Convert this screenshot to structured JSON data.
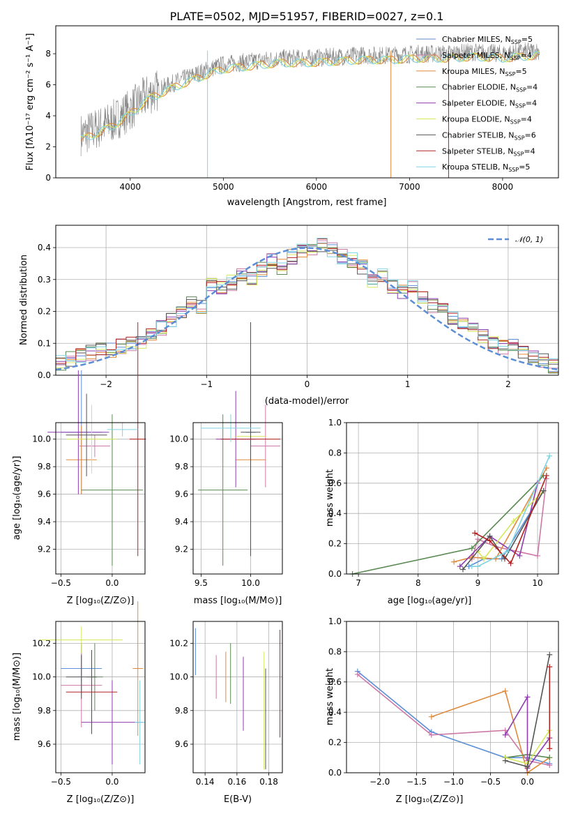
{
  "colors": [
    "#1f77b4",
    "#2ca02c",
    "#d62728",
    "#9467bd",
    "#8c564b",
    "#e377c2",
    "#7f7f7f",
    "#bcbd22",
    "#17becf"
  ],
  "spectrum": {
    "title": "PLATE=0502, MJD=51957, FIBERID=0027, z=0.1",
    "xlabel": "wavelength [Angstrom, rest frame]",
    "ylabel": "Flux [fλ10⁻¹⁷ erg cm⁻² s⁻¹ A⁻¹]",
    "xticks": [
      "4000",
      "5000",
      "6000",
      "7000",
      "8000"
    ],
    "yticks": [
      "0",
      "2",
      "4",
      "6",
      "8"
    ],
    "legend": [
      {
        "label": "Chabrier MILES, N_SSP=5",
        "color": "#5b8ed6"
      },
      {
        "label": "Salpeter MILES, N_SSP=4",
        "color": "#cc79a7"
      },
      {
        "label": "Kroupa MILES, N_SSP=5",
        "color": "#e08a3c"
      },
      {
        "label": "Chabrier ELODIE, N_SSP=4",
        "color": "#5a8a52"
      },
      {
        "label": "Salpeter ELODIE, N_SSP=4",
        "color": "#8e3cae"
      },
      {
        "label": "Kroupa ELODIE, N_SSP=4",
        "color": "#d6e85a"
      },
      {
        "label": "Chabrier STELIB, N_SSP=6",
        "color": "#555555"
      },
      {
        "label": "Salpeter STELIB, N_SSP=4",
        "color": "#b22222"
      },
      {
        "label": "Kroupa STELIB, N_SSP=5",
        "color": "#7ed3e0"
      }
    ]
  },
  "histogram": {
    "xlabel": "(data-model)/error",
    "ylabel": "Normed distribution",
    "xticks": [
      "−2",
      "−1",
      "0",
      "1",
      "2"
    ],
    "yticks": [
      "0.0",
      "0.1",
      "0.2",
      "0.3",
      "0.4"
    ],
    "legend": "𝒩(0, 1)"
  },
  "panels": {
    "age_vs_Z": {
      "xlabel": "Z [log₁₀(Z/Z⊙)]",
      "ylabel": "age  [log₁₀(age/yr)]",
      "xticks": [
        "−0.5",
        "0.0"
      ],
      "yticks": [
        "9.2",
        "9.4",
        "9.6",
        "9.8",
        "10.0"
      ]
    },
    "age_vs_mass": {
      "xlabel": "mass [log₁₀(M/M⊙)]",
      "xticks": [
        "9.5",
        "10.0"
      ],
      "yticks": [
        "9.2",
        "9.4",
        "9.6",
        "9.8",
        "10.0"
      ]
    },
    "weight_vs_age": {
      "xlabel": "age  [log₁₀(age/yr)]",
      "ylabel": "mass weight",
      "xticks": [
        "7",
        "8",
        "9",
        "10"
      ],
      "yticks": [
        "0.0",
        "0.2",
        "0.4",
        "0.6",
        "0.8",
        "1.0"
      ]
    },
    "mass_vs_Z": {
      "xlabel": "Z [log₁₀(Z/Z⊙)]",
      "ylabel": "mass [log₁₀(M/M⊙)]",
      "xticks": [
        "−0.5",
        "0.0"
      ],
      "yticks": [
        "9.6",
        "9.8",
        "10.0",
        "10.2"
      ]
    },
    "mass_vs_ebv": {
      "xlabel": "E(B-V)",
      "xticks": [
        "0.14",
        "0.16",
        "0.18"
      ],
      "yticks": [
        "9.6",
        "9.8",
        "10.0",
        "10.2"
      ]
    },
    "weight_vs_Z": {
      "xlabel": "Z [log₁₀(Z/Z⊙)]",
      "ylabel": "mass weight",
      "xticks": [
        "−2.0",
        "−1.5",
        "−1.0",
        "−0.5",
        "0.0"
      ],
      "yticks": [
        "0.0",
        "0.2",
        "0.4",
        "0.6",
        "0.8",
        "1.0"
      ]
    }
  },
  "chart_data": [
    {
      "type": "line",
      "panel": "spectrum",
      "title": "PLATE=0502, MJD=51957, FIBERID=0027, z=0.1",
      "xlim": [
        3200,
        8600
      ],
      "ylim": [
        0,
        9.8
      ],
      "data_envelope_x": [
        3500,
        3800,
        4000,
        4200,
        4500,
        4800,
        5000,
        5300,
        5600,
        5900,
        6200,
        6500,
        6800,
        7100,
        7400,
        7700,
        8000,
        8200,
        8400
      ],
      "data_envelope_y": [
        2.8,
        3.6,
        4.4,
        5.4,
        6.2,
        6.9,
        7.3,
        7.5,
        7.7,
        7.7,
        7.8,
        7.9,
        7.9,
        8.0,
        8.0,
        8.1,
        8.0,
        8.1,
        8.2
      ],
      "series": [
        {
          "name": "Chabrier MILES, N_SSP=5"
        },
        {
          "name": "Salpeter MILES, N_SSP=4"
        },
        {
          "name": "Kroupa MILES, N_SSP=5"
        },
        {
          "name": "Chabrier ELODIE, N_SSP=4"
        },
        {
          "name": "Salpeter ELODIE, N_SSP=4"
        },
        {
          "name": "Kroupa ELODIE, N_SSP=4"
        },
        {
          "name": "Chabrier STELIB, N_SSP=6"
        },
        {
          "name": "Salpeter STELIB, N_SSP=4"
        },
        {
          "name": "Kroupa STELIB, N_SSP=5"
        }
      ]
    },
    {
      "type": "bar",
      "panel": "histogram",
      "xlim": [
        -2.5,
        2.5
      ],
      "ylim": [
        0,
        0.47
      ],
      "bin_edges": [
        -2.5,
        -2.4,
        -2.3,
        -2.2,
        -2.1,
        -2.0,
        -1.9,
        -1.8,
        -1.7,
        -1.6,
        -1.5,
        -1.4,
        -1.3,
        -1.2,
        -1.1,
        -1.0,
        -0.9,
        -0.8,
        -0.7,
        -0.6,
        -0.5,
        -0.4,
        -0.3,
        -0.2,
        -0.1,
        0.0,
        0.1,
        0.2,
        0.3,
        0.4,
        0.5,
        0.6,
        0.7,
        0.8,
        0.9,
        1.0,
        1.1,
        1.2,
        1.3,
        1.4,
        1.5,
        1.6,
        1.7,
        1.8,
        1.9,
        2.0,
        2.1,
        2.2,
        2.3,
        2.4,
        2.5
      ],
      "values": [
        0.04,
        0.05,
        0.06,
        0.07,
        0.08,
        0.08,
        0.09,
        0.1,
        0.1,
        0.13,
        0.15,
        0.17,
        0.19,
        0.23,
        0.21,
        0.28,
        0.27,
        0.29,
        0.31,
        0.3,
        0.33,
        0.36,
        0.34,
        0.37,
        0.39,
        0.4,
        0.41,
        0.39,
        0.37,
        0.36,
        0.34,
        0.3,
        0.31,
        0.28,
        0.26,
        0.28,
        0.25,
        0.22,
        0.21,
        0.18,
        0.16,
        0.14,
        0.12,
        0.1,
        0.09,
        0.09,
        0.07,
        0.06,
        0.05,
        0.03
      ],
      "normal_curve": {
        "mean": 0,
        "sigma": 1
      }
    },
    {
      "type": "scatter",
      "panel": "age_vs_Z",
      "xlim": [
        -0.55,
        0.32
      ],
      "ylim": [
        9.02,
        10.12
      ],
      "points": [
        {
          "x": -0.3,
          "y": 10.05,
          "xerr": 0.2,
          "yerr": 0.45
        },
        {
          "x": -0.17,
          "y": 9.95,
          "xerr": 0.15,
          "yerr": 0.08
        },
        {
          "x": -0.3,
          "y": 9.85,
          "xerr": 0.15,
          "yerr": 0.25
        },
        {
          "x": 0.0,
          "y": 9.63,
          "xerr": 0.3,
          "yerr": 0.55
        },
        {
          "x": -0.33,
          "y": 10.05,
          "xerr": 0.3,
          "yerr": 0.45
        },
        {
          "x": -0.2,
          "y": 10.0,
          "xerr": 0.25,
          "yerr": 0.25
        },
        {
          "x": -0.25,
          "y": 10.03,
          "xerr": 0.2,
          "yerr": 0.3
        },
        {
          "x": 0.25,
          "y": 10.0,
          "xerr": 0.08,
          "yerr": 0.85
        },
        {
          "x": 0.1,
          "y": 10.07,
          "xerr": 0.15,
          "yerr": 0.05
        }
      ]
    },
    {
      "type": "scatter",
      "panel": "age_vs_mass",
      "xlim": [
        9.42,
        10.32
      ],
      "ylim": [
        9.02,
        10.12
      ],
      "points": [
        {
          "x": 10.0,
          "y": 10.05,
          "xerr": 0.05,
          "yerr": 0.45
        },
        {
          "x": 10.15,
          "y": 9.95,
          "xerr": 0.15,
          "yerr": 0.3
        },
        {
          "x": 10.0,
          "y": 9.85,
          "xerr": 0.15,
          "yerr": 0.25
        },
        {
          "x": 9.72,
          "y": 9.63,
          "xerr": 0.25,
          "yerr": 0.55
        },
        {
          "x": 9.85,
          "y": 10.0,
          "xerr": 0.2,
          "yerr": 0.35
        },
        {
          "x": 10.0,
          "y": 10.02,
          "xerr": 0.15,
          "yerr": 0.35
        },
        {
          "x": 10.0,
          "y": 10.05,
          "xerr": 0.1,
          "yerr": 0.45
        },
        {
          "x": 10.0,
          "y": 10.0,
          "xerr": 0.3,
          "yerr": 0.85
        },
        {
          "x": 9.8,
          "y": 10.08,
          "xerr": 0.3,
          "yerr": 0.1
        }
      ]
    },
    {
      "type": "line",
      "panel": "weight_vs_age",
      "xlim": [
        6.8,
        10.35
      ],
      "ylim": [
        0,
        1.0
      ],
      "series": [
        {
          "x": [
            8.85,
            9.1,
            9.4,
            10.1
          ],
          "y": [
            0.05,
            0.1,
            0.1,
            0.55
          ]
        },
        {
          "x": [
            8.9,
            9.0,
            9.3,
            10.0,
            10.15
          ],
          "y": [
            0.1,
            0.23,
            0.18,
            0.12,
            0.63
          ]
        },
        {
          "x": [
            8.6,
            8.9,
            9.3,
            10.15
          ],
          "y": [
            0.08,
            0.11,
            0.1,
            0.7
          ]
        },
        {
          "x": 6.9,
          "y": 0.0,
          "xs": [
            6.9,
            8.9,
            10.1
          ],
          "ys": [
            0.0,
            0.17,
            0.65
          ]
        },
        {
          "x": [
            8.7,
            9.2,
            9.7,
            10.0
          ],
          "y": [
            0.05,
            0.25,
            0.12,
            0.6
          ]
        },
        {
          "x": [
            9.0,
            9.1,
            9.6,
            10.1
          ],
          "y": [
            0.15,
            0.1,
            0.35,
            0.55
          ]
        },
        {
          "x": [
            8.75,
            9.2,
            9.45,
            10.1
          ],
          "y": [
            0.03,
            0.25,
            0.1,
            0.55
          ]
        },
        {
          "x": [
            8.95,
            9.2,
            9.55,
            10.15
          ],
          "y": [
            0.27,
            0.22,
            0.07,
            0.65
          ]
        },
        {
          "x": [
            8.9,
            9.0,
            9.5,
            10.2
          ],
          "y": [
            0.05,
            0.05,
            0.15,
            0.78
          ]
        }
      ]
    },
    {
      "type": "scatter",
      "panel": "mass_vs_Z",
      "xlim": [
        -0.55,
        0.32
      ],
      "ylim": [
        9.43,
        10.33
      ],
      "points": [
        {
          "x": -0.3,
          "y": 10.05,
          "xerr": 0.2,
          "yerr": 0.15
        },
        {
          "x": -0.3,
          "y": 9.95,
          "xerr": 0.2,
          "yerr": 0.25
        },
        {
          "x": 0.25,
          "y": 10.05,
          "xerr": 0.05,
          "yerr": 0.4
        },
        {
          "x": -0.17,
          "y": 10.0,
          "xerr": 0.08,
          "yerr": 0.2
        },
        {
          "x": 0.0,
          "y": 9.73,
          "xerr": 0.3,
          "yerr": 0.25
        },
        {
          "x": -0.3,
          "y": 10.22,
          "xerr": 0.4,
          "yerr": 0.08
        },
        {
          "x": -0.3,
          "y": 10.0,
          "xerr": 0.15,
          "yerr": 0.13
        },
        {
          "x": -0.2,
          "y": 9.91,
          "xerr": 0.25,
          "yerr": 0.25
        },
        {
          "x": 0.27,
          "y": 9.73,
          "xerr": 0.05,
          "yerr": 0.25
        }
      ]
    },
    {
      "type": "scatter",
      "panel": "mass_vs_ebv",
      "xlim": [
        0.1325,
        0.1885
      ],
      "ylim": [
        9.43,
        10.33
      ],
      "points": [
        {
          "x": 0.134,
          "y": 10.15,
          "yerr": 0.14
        },
        {
          "x": 0.147,
          "y": 10.0,
          "yerr": 0.13
        },
        {
          "x": 0.153,
          "y": 10.0,
          "yerr": 0.15
        },
        {
          "x": 0.156,
          "y": 10.02,
          "yerr": 0.18
        },
        {
          "x": 0.164,
          "y": 9.9,
          "yerr": 0.22
        },
        {
          "x": 0.177,
          "y": 9.8,
          "yerr": 0.35
        },
        {
          "x": 0.178,
          "y": 9.75,
          "yerr": 0.3
        },
        {
          "x": 0.187,
          "y": 9.96,
          "yerr": 0.32
        }
      ]
    },
    {
      "type": "line",
      "panel": "weight_vs_Z",
      "xlim": [
        -2.45,
        0.42
      ],
      "ylim": [
        0,
        1.0
      ],
      "series": [
        {
          "x": [
            -2.3,
            -1.3,
            -0.3,
            0.0,
            0.3
          ],
          "y": [
            0.67,
            0.27,
            0.1,
            0.1,
            0.06
          ]
        },
        {
          "x": [
            -2.3,
            -1.3,
            -0.3,
            0.0,
            0.3
          ],
          "y": [
            0.65,
            0.25,
            0.28,
            0.08,
            0.05
          ]
        },
        {
          "x": [
            -1.3,
            -0.3,
            0.0,
            0.3
          ],
          "y": [
            0.37,
            0.54,
            0.0,
            0.1
          ]
        },
        {
          "x": [
            -0.3,
            0.0,
            0.3
          ],
          "y": [
            0.1,
            0.12,
            0.1
          ]
        },
        {
          "x": [
            -0.3,
            0.0,
            0.0,
            0.3
          ],
          "y": [
            0.25,
            0.5,
            0.03,
            0.23
          ]
        },
        {
          "x": [
            -0.3,
            0.0,
            0.3
          ],
          "y": [
            0.1,
            0.06,
            0.28
          ]
        },
        {
          "x": [
            -0.3,
            0.0,
            0.3
          ],
          "y": [
            0.08,
            0.04,
            0.78
          ]
        },
        {
          "x": [
            0.3,
            0.3
          ],
          "y": [
            0.7,
            0.16
          ]
        }
      ]
    }
  ]
}
